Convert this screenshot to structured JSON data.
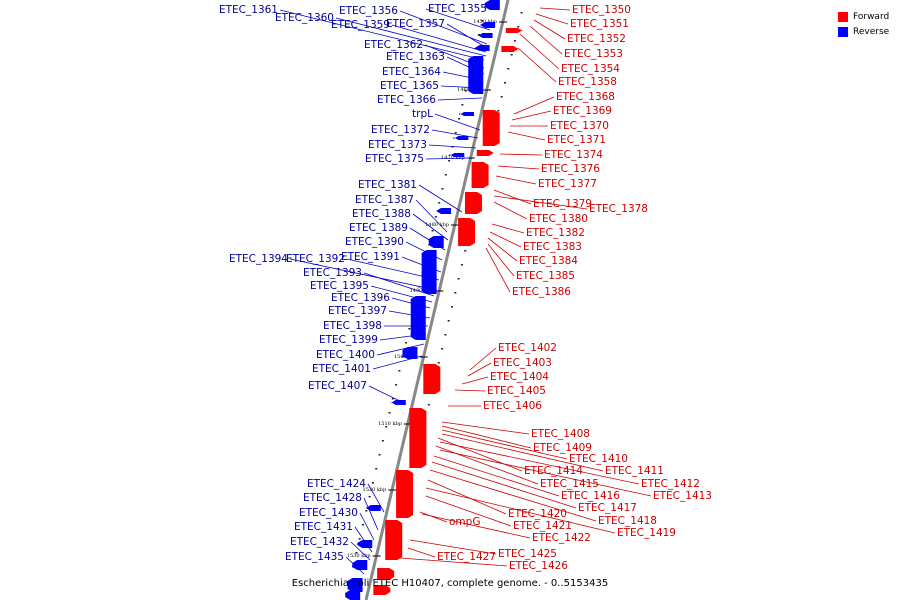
{
  "caption": "Escherichia coli ETEC H10407, complete genome. - 0..5153435",
  "legend": [
    {
      "label": "Forward",
      "color": "#ff0000"
    },
    {
      "label": "Reverse",
      "color": "#0000ff"
    }
  ],
  "colors": {
    "forward": "#ff0000",
    "reverse": "#0000ff",
    "forward_label": "#cc0000",
    "reverse_label": "#000099",
    "backbone": "#888888"
  },
  "ticks": [
    "1450 kbp",
    "1460 kbp",
    "1470 kbp",
    "1480 kbp",
    "1490 kbp",
    "1500 kbp",
    "1510 kbp",
    "1520 kbp",
    "1530 kbp"
  ],
  "reverse_genes": [
    "ETEC_1355",
    "ETEC_1356",
    "ETEC_1357",
    "ETEC_1359",
    "ETEC_1360",
    "ETEC_1361",
    "ETEC_1362",
    "ETEC_1363",
    "ETEC_1364",
    "ETEC_1365",
    "ETEC_1366",
    "trpL",
    "ETEC_1372",
    "ETEC_1373",
    "ETEC_1375",
    "ETEC_1381",
    "ETEC_1387",
    "ETEC_1388",
    "ETEC_1389",
    "ETEC_1390",
    "ETEC_1391",
    "ETEC_1392",
    "ETEC_1394",
    "ETEC_1393",
    "ETEC_1395",
    "ETEC_1396",
    "ETEC_1397",
    "ETEC_1398",
    "ETEC_1399",
    "ETEC_1400",
    "ETEC_1401",
    "ETEC_1407",
    "ETEC_1424",
    "ETEC_1428",
    "ETEC_1430",
    "ETEC_1431",
    "ETEC_1432",
    "ETEC_1435"
  ],
  "forward_genes": [
    "ETEC_1350",
    "ETEC_1351",
    "ETEC_1352",
    "ETEC_1353",
    "ETEC_1354",
    "ETEC_1358",
    "ETEC_1368",
    "ETEC_1369",
    "ETEC_1370",
    "ETEC_1371",
    "ETEC_1374",
    "ETEC_1376",
    "ETEC_1377",
    "ETEC_1379",
    "ETEC_1378",
    "ETEC_1380",
    "ETEC_1382",
    "ETEC_1383",
    "ETEC_1384",
    "ETEC_1385",
    "ETEC_1386",
    "ETEC_1402",
    "ETEC_1403",
    "ETEC_1404",
    "ETEC_1405",
    "ETEC_1406",
    "ETEC_1408",
    "ETEC_1409",
    "ETEC_1410",
    "ETEC_1411",
    "ETEC_1414",
    "ETEC_1412",
    "ETEC_1415",
    "ETEC_1413",
    "ETEC_1416",
    "ETEC_1417",
    "ETEC_1418",
    "ETEC_1420",
    "ompG",
    "ETEC_1421",
    "ETEC_1419",
    "ETEC_1422",
    "ETEC_1425",
    "ETEC_1427",
    "ETEC_1426"
  ]
}
